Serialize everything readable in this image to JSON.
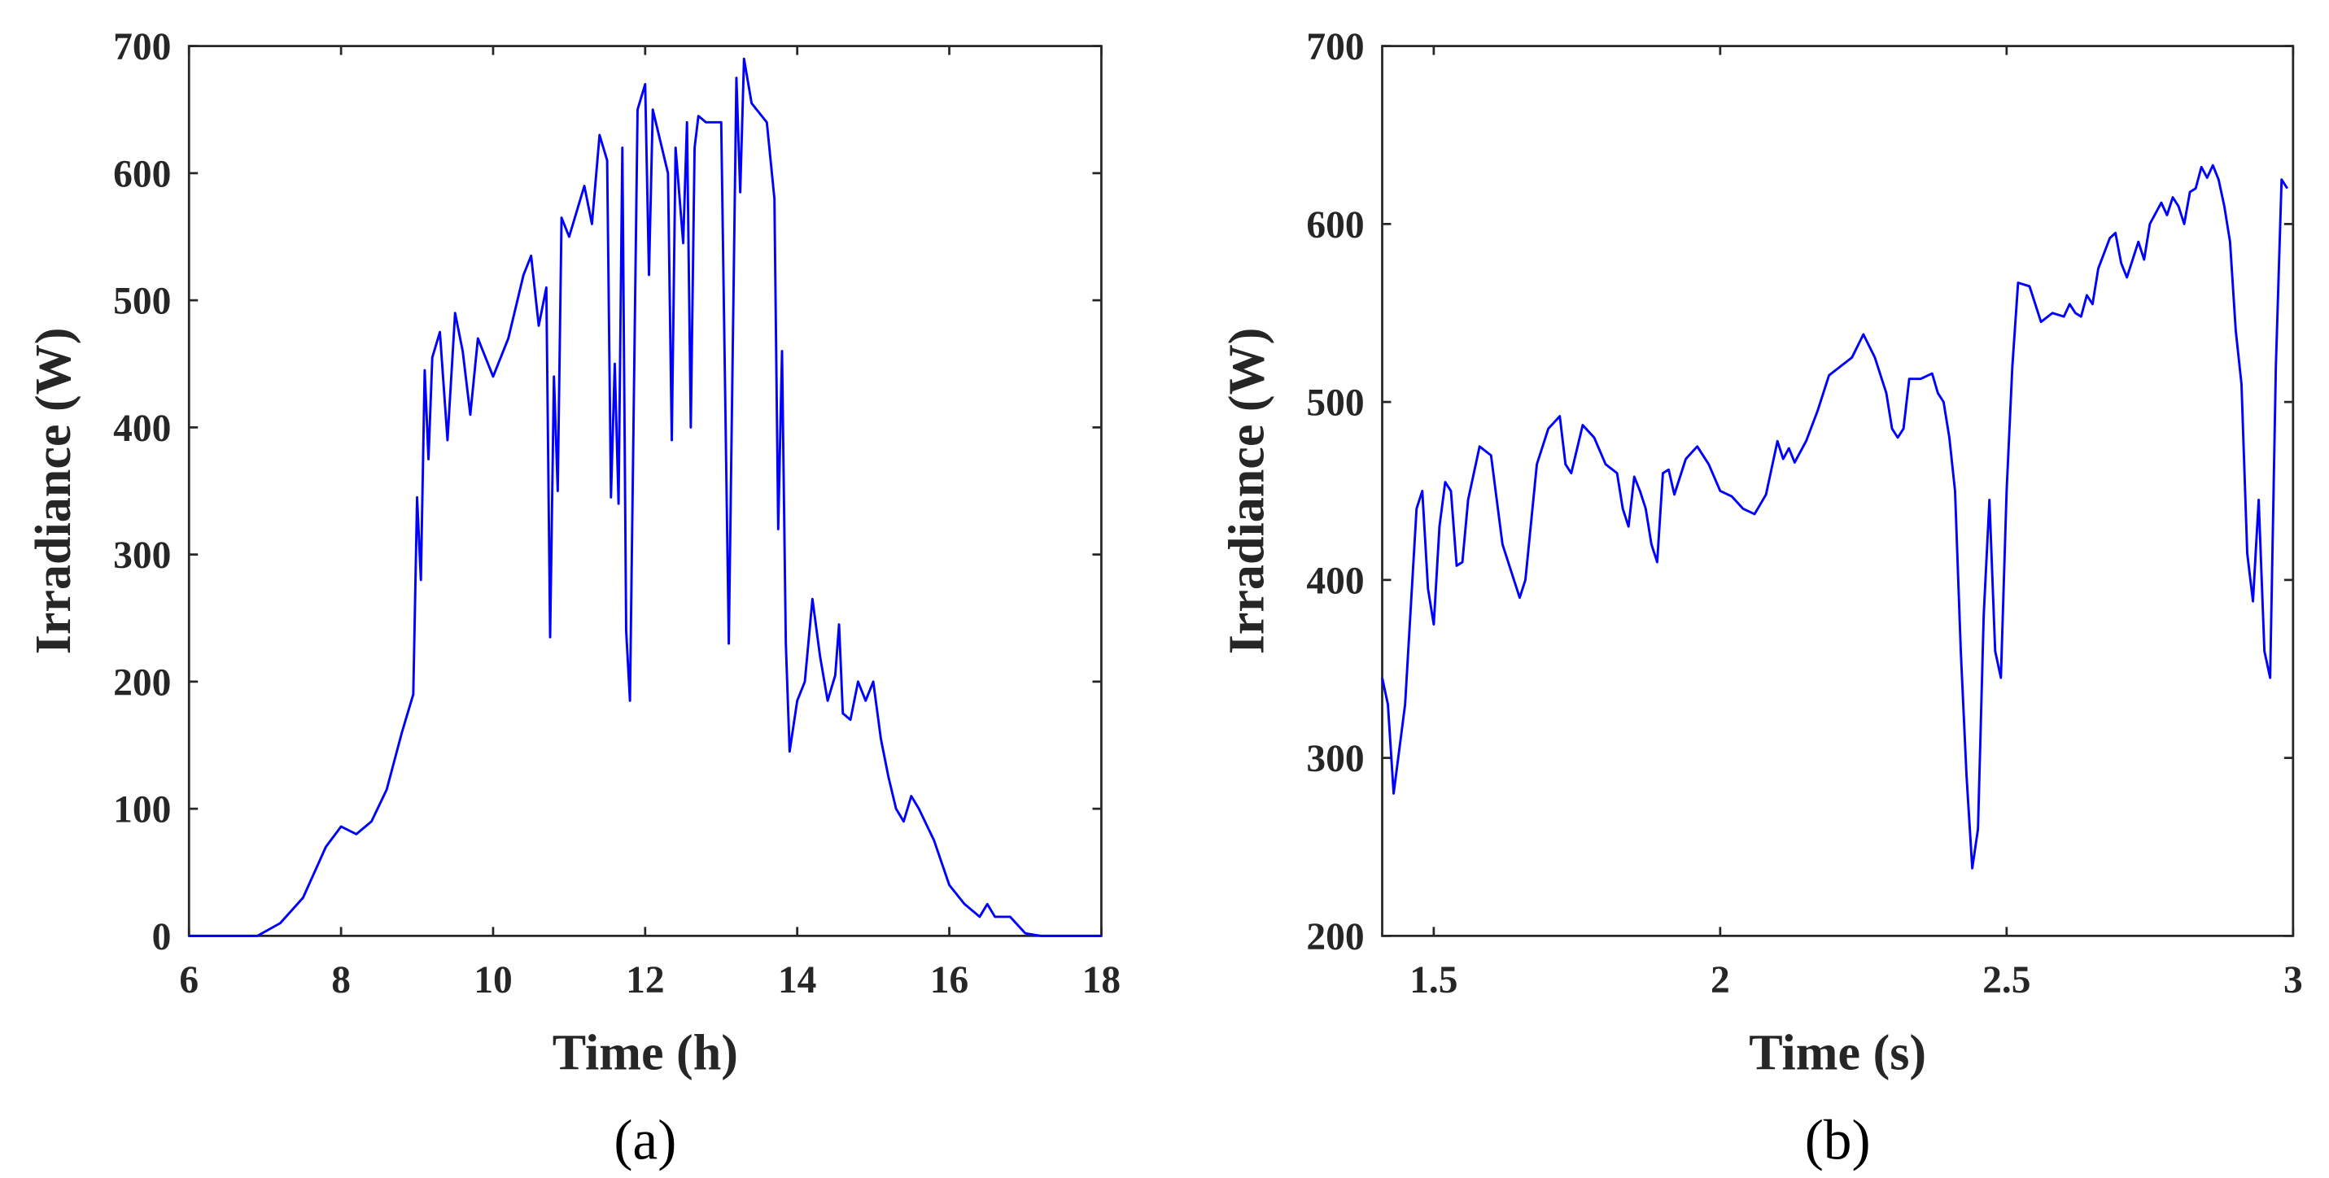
{
  "chart_data": [
    {
      "type": "line",
      "caption": "(a)",
      "xlabel": "Time (h)",
      "ylabel": "Irradiance (W)",
      "color": "#0000ff",
      "xlim": [
        6,
        18
      ],
      "ylim": [
        0,
        700
      ],
      "xticks": [
        6,
        8,
        10,
        12,
        14,
        16,
        18
      ],
      "yticks": [
        0,
        100,
        200,
        300,
        400,
        500,
        600,
        700
      ],
      "x": [
        6,
        6.9,
        7.2,
        7.5,
        7.8,
        8,
        8.2,
        8.4,
        8.6,
        8.8,
        8.95,
        9.0,
        9.05,
        9.1,
        9.15,
        9.2,
        9.3,
        9.4,
        9.5,
        9.6,
        9.7,
        9.8,
        10.0,
        10.2,
        10.4,
        10.5,
        10.6,
        10.7,
        10.75,
        10.8,
        10.85,
        10.9,
        11.0,
        11.2,
        11.3,
        11.4,
        11.5,
        11.55,
        11.6,
        11.65,
        11.7,
        11.75,
        11.8,
        11.9,
        12.0,
        12.05,
        12.1,
        12.3,
        12.35,
        12.4,
        12.5,
        12.55,
        12.6,
        12.65,
        12.7,
        12.8,
        13.0,
        13.1,
        13.2,
        13.25,
        13.3,
        13.4,
        13.6,
        13.7,
        13.75,
        13.8,
        13.85,
        13.9,
        14.0,
        14.1,
        14.2,
        14.3,
        14.4,
        14.5,
        14.55,
        14.6,
        14.7,
        14.8,
        14.9,
        15.0,
        15.1,
        15.2,
        15.3,
        15.4,
        15.5,
        15.6,
        15.8,
        16.0,
        16.2,
        16.4,
        16.5,
        16.6,
        16.8,
        17.0,
        17.2,
        18
      ],
      "values": [
        0,
        0,
        10,
        30,
        70,
        86,
        80,
        90,
        115,
        160,
        190,
        345,
        280,
        445,
        375,
        455,
        475,
        390,
        490,
        460,
        410,
        470,
        440,
        470,
        520,
        535,
        480,
        510,
        235,
        440,
        350,
        565,
        550,
        590,
        560,
        630,
        610,
        345,
        450,
        340,
        620,
        240,
        185,
        650,
        670,
        520,
        650,
        600,
        390,
        620,
        545,
        640,
        400,
        620,
        645,
        640,
        640,
        230,
        675,
        585,
        690,
        655,
        640,
        580,
        320,
        460,
        230,
        145,
        185,
        200,
        265,
        220,
        185,
        205,
        245,
        175,
        170,
        200,
        185,
        200,
        155,
        125,
        100,
        90,
        110,
        100,
        75,
        40,
        25,
        15,
        25,
        15,
        15,
        2,
        0,
        0
      ]
    },
    {
      "type": "line",
      "caption": "(b)",
      "xlabel": "Time (s)",
      "ylabel": "Irradiance (W)",
      "color": "#0000ff",
      "xlim": [
        1.41,
        3
      ],
      "ylim": [
        200,
        700
      ],
      "xticks": [
        1.5,
        2,
        2.5,
        3
      ],
      "yticks": [
        200,
        300,
        400,
        500,
        600,
        700
      ],
      "x": [
        1.41,
        1.42,
        1.43,
        1.45,
        1.47,
        1.48,
        1.49,
        1.5,
        1.51,
        1.52,
        1.53,
        1.54,
        1.55,
        1.56,
        1.58,
        1.6,
        1.62,
        1.64,
        1.65,
        1.66,
        1.68,
        1.7,
        1.72,
        1.73,
        1.74,
        1.76,
        1.78,
        1.8,
        1.82,
        1.83,
        1.84,
        1.85,
        1.86,
        1.87,
        1.88,
        1.89,
        1.9,
        1.91,
        1.92,
        1.94,
        1.96,
        1.98,
        2.0,
        2.02,
        2.04,
        2.06,
        2.08,
        2.1,
        2.11,
        2.12,
        2.13,
        2.15,
        2.17,
        2.19,
        2.21,
        2.23,
        2.25,
        2.27,
        2.29,
        2.3,
        2.31,
        2.32,
        2.33,
        2.35,
        2.37,
        2.38,
        2.39,
        2.4,
        2.41,
        2.42,
        2.43,
        2.44,
        2.45,
        2.46,
        2.47,
        2.48,
        2.49,
        2.5,
        2.51,
        2.52,
        2.54,
        2.55,
        2.56,
        2.58,
        2.6,
        2.61,
        2.62,
        2.63,
        2.64,
        2.65,
        2.66,
        2.68,
        2.69,
        2.7,
        2.71,
        2.73,
        2.74,
        2.75,
        2.77,
        2.78,
        2.79,
        2.8,
        2.81,
        2.82,
        2.83,
        2.84,
        2.85,
        2.86,
        2.87,
        2.88,
        2.89,
        2.9,
        2.91,
        2.92,
        2.93,
        2.94,
        2.95,
        2.96,
        2.97,
        2.98,
        2.99
      ],
      "values": [
        345,
        330,
        280,
        330,
        440,
        450,
        395,
        375,
        430,
        455,
        450,
        408,
        410,
        445,
        475,
        470,
        420,
        400,
        390,
        400,
        465,
        485,
        492,
        465,
        460,
        487,
        480,
        465,
        460,
        440,
        430,
        458,
        450,
        440,
        420,
        410,
        460,
        462,
        448,
        468,
        475,
        465,
        450,
        447,
        440,
        437,
        448,
        478,
        468,
        474,
        466,
        478,
        495,
        515,
        520,
        525,
        538,
        525,
        505,
        485,
        480,
        485,
        513,
        513,
        516,
        505,
        500,
        480,
        450,
        360,
        290,
        238,
        260,
        380,
        445,
        360,
        345,
        450,
        520,
        567,
        565,
        555,
        545,
        550,
        548,
        555,
        550,
        548,
        560,
        555,
        575,
        592,
        595,
        578,
        570,
        590,
        580,
        600,
        612,
        605,
        615,
        610,
        600,
        618,
        620,
        632,
        626,
        633,
        625,
        610,
        590,
        540,
        510,
        415,
        388,
        445,
        360,
        345,
        520,
        625,
        620
      ]
    }
  ]
}
